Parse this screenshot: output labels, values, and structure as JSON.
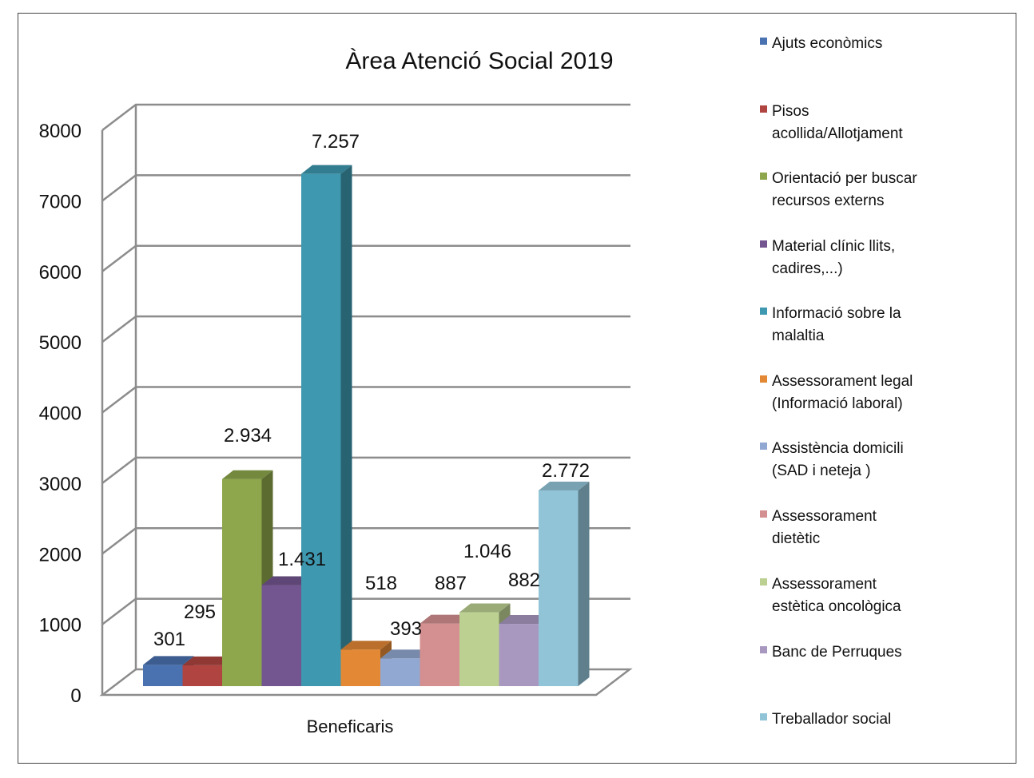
{
  "chart_data": {
    "type": "bar",
    "style": "3d-clustered-column",
    "title": "Àrea Atenció Social 2019",
    "categories": [
      "Beneficaris"
    ],
    "ylim": [
      0,
      8000
    ],
    "yticks": [
      "0",
      "1000",
      "2000",
      "3000",
      "4000",
      "5000",
      "6000",
      "7000",
      "8000"
    ],
    "grid": true,
    "legend_position": "right",
    "series": [
      {
        "name": "Ajuts econòmics",
        "values": [
          301
        ],
        "label": "301",
        "color": "#4a72b0",
        "legend_lines": [
          "Ajuts econòmics"
        ]
      },
      {
        "name": "Pisos acollida/Allotjament",
        "values": [
          295
        ],
        "label": "295",
        "color": "#b04440",
        "legend_lines": [
          "Pisos",
          "acollida/Allotjament"
        ]
      },
      {
        "name": "Orientació per buscar recursos externs",
        "values": [
          2934
        ],
        "label": "2.934",
        "color": "#8ea64c",
        "legend_lines": [
          "Orientació per buscar",
          "recursos externs"
        ]
      },
      {
        "name": "Material clínic llits, cadires,...)",
        "values": [
          1431
        ],
        "label": "1.431",
        "color": "#735690",
        "legend_lines": [
          "Material clínic llits,",
          "cadires,...)"
        ]
      },
      {
        "name": "Informació sobre la malaltia",
        "values": [
          7257
        ],
        "label": "7.257",
        "color": "#3e98b0",
        "legend_lines": [
          "Informació sobre la",
          "malaltia"
        ]
      },
      {
        "name": "Assessorament legal (Informació laboral)",
        "values": [
          518
        ],
        "label": "518",
        "color": "#e38936",
        "legend_lines": [
          "Assessorament legal",
          "(Informació laboral)"
        ]
      },
      {
        "name": "Assistència domicili (SAD i neteja )",
        "values": [
          393
        ],
        "label": "393",
        "color": "#91a8d2",
        "legend_lines": [
          "Assistència domicili",
          "(SAD i neteja )"
        ]
      },
      {
        "name": "Assessorament dietètic",
        "values": [
          887
        ],
        "label": "887",
        "color": "#d49090",
        "legend_lines": [
          "Assessorament",
          "dietètic"
        ]
      },
      {
        "name": "Assessorament estètica oncològica",
        "values": [
          1046
        ],
        "label": "1.046",
        "color": "#bcd092",
        "legend_lines": [
          "Assessorament",
          "estètica oncològica"
        ]
      },
      {
        "name": "Banc de Perruques",
        "values": [
          882
        ],
        "label": "882",
        "color": "#a898c0",
        "legend_lines": [
          "Banc de Perruques"
        ]
      },
      {
        "name": "Treballador social",
        "values": [
          2772
        ],
        "label": "2.772",
        "color": "#92c4d8",
        "legend_lines": [
          "Treballador social"
        ]
      }
    ]
  }
}
